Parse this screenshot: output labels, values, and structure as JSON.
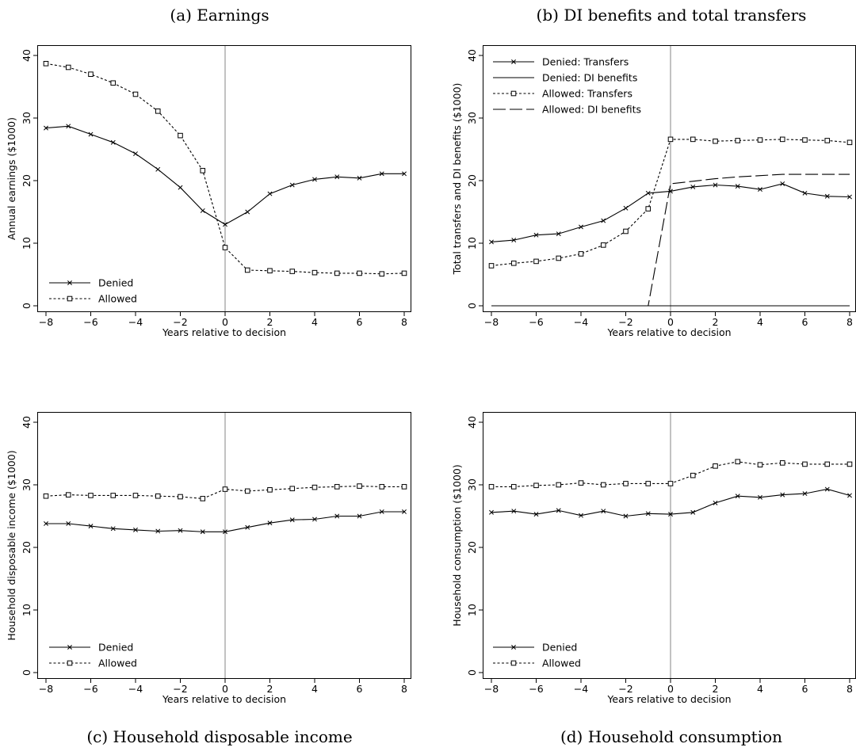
{
  "chart_data": [
    {
      "type": "line",
      "caption": "(a) Earnings",
      "xlabel": "Years relative to decision",
      "ylabel": "Annual earnings ($1000)",
      "xlim": [
        -8,
        8
      ],
      "ylim": [
        0,
        40
      ],
      "xticks": [
        "−8",
        "−6",
        "−4",
        "−2",
        "0",
        "2",
        "4",
        "6",
        "8"
      ],
      "yticks": [
        "0",
        "10",
        "20",
        "30",
        "40"
      ],
      "vline": 0,
      "legend_position": "bottom-left",
      "x": [
        -8,
        -7,
        -6,
        -5,
        -4,
        -3,
        -2,
        -1,
        0,
        1,
        2,
        3,
        4,
        5,
        6,
        7,
        8
      ],
      "series": [
        {
          "name": "Denied",
          "style": "solid",
          "marker": "x",
          "values": [
            28.4,
            28.7,
            27.4,
            26.1,
            24.3,
            21.8,
            18.9,
            15.2,
            13.0,
            15.0,
            17.9,
            19.3,
            20.2,
            20.6,
            20.4,
            21.1,
            21.1
          ]
        },
        {
          "name": "Allowed",
          "style": "dotted",
          "marker": "square",
          "values": [
            38.7,
            38.1,
            37.0,
            35.6,
            33.8,
            31.1,
            27.2,
            21.6,
            9.3,
            5.7,
            5.6,
            5.5,
            5.3,
            5.2,
            5.2,
            5.1,
            5.2
          ]
        }
      ]
    },
    {
      "type": "line",
      "caption": "(b) DI benefits and total transfers",
      "xlabel": "Years relative to decision",
      "ylabel": "Total transfers and DI benefits ($1000)",
      "xlim": [
        -8,
        8
      ],
      "ylim": [
        0,
        40
      ],
      "xticks": [
        "−8",
        "−6",
        "−4",
        "−2",
        "0",
        "2",
        "4",
        "6",
        "8"
      ],
      "yticks": [
        "0",
        "10",
        "20",
        "30",
        "40"
      ],
      "vline": 0,
      "legend_position": "top-left",
      "x": [
        -8,
        -7,
        -6,
        -5,
        -4,
        -3,
        -2,
        -1,
        0,
        1,
        2,
        3,
        4,
        5,
        6,
        7,
        8
      ],
      "series": [
        {
          "name": "Denied: Transfers",
          "style": "solid",
          "marker": "x",
          "values": [
            10.2,
            10.5,
            11.3,
            11.5,
            12.6,
            13.6,
            15.6,
            18.0,
            18.3,
            19.0,
            19.3,
            19.1,
            18.6,
            19.5,
            18.0,
            17.5,
            17.4
          ]
        },
        {
          "name": "Denied: DI benefits",
          "style": "solid",
          "marker": "none",
          "values": [
            0,
            0,
            0,
            0,
            0,
            0,
            0,
            0,
            0,
            0,
            0,
            0,
            0,
            0,
            0,
            0,
            0
          ]
        },
        {
          "name": "Allowed: Transfers",
          "style": "dotted",
          "marker": "square",
          "values": [
            6.4,
            6.8,
            7.1,
            7.6,
            8.3,
            9.7,
            11.9,
            15.5,
            26.6,
            26.6,
            26.3,
            26.4,
            26.5,
            26.6,
            26.5,
            26.4,
            26.1
          ]
        },
        {
          "name": "Allowed: DI benefits",
          "style": "longdash",
          "marker": "none",
          "values": [
            0,
            0,
            0,
            0,
            0,
            0,
            0,
            0,
            19.5,
            19.9,
            20.3,
            20.6,
            20.8,
            21.0,
            21.0,
            21.0,
            21.0
          ]
        }
      ]
    },
    {
      "type": "line",
      "caption": "(c) Household disposable income",
      "xlabel": "Years relative to decision",
      "ylabel": "Household disposable income ($1000)",
      "xlim": [
        -8,
        8
      ],
      "ylim": [
        0,
        40
      ],
      "xticks": [
        "−8",
        "−6",
        "−4",
        "−2",
        "0",
        "2",
        "4",
        "6",
        "8"
      ],
      "yticks": [
        "0",
        "10",
        "20",
        "30",
        "40"
      ],
      "vline": 0,
      "legend_position": "bottom-left",
      "x": [
        -8,
        -7,
        -6,
        -5,
        -4,
        -3,
        -2,
        -1,
        0,
        1,
        2,
        3,
        4,
        5,
        6,
        7,
        8
      ],
      "series": [
        {
          "name": "Denied",
          "style": "solid",
          "marker": "x",
          "values": [
            23.8,
            23.8,
            23.4,
            23.0,
            22.8,
            22.6,
            22.7,
            22.5,
            22.5,
            23.2,
            23.9,
            24.4,
            24.5,
            25.0,
            25.0,
            25.7,
            25.7
          ]
        },
        {
          "name": "Allowed",
          "style": "dotted",
          "marker": "square",
          "values": [
            28.2,
            28.4,
            28.3,
            28.3,
            28.3,
            28.2,
            28.1,
            27.8,
            29.3,
            29.0,
            29.2,
            29.4,
            29.6,
            29.7,
            29.8,
            29.7,
            29.7
          ]
        }
      ]
    },
    {
      "type": "line",
      "caption": "(d) Household consumption",
      "xlabel": "Years relative to decision",
      "ylabel": "Household consumption ($1000)",
      "xlim": [
        -8,
        8
      ],
      "ylim": [
        0,
        40
      ],
      "xticks": [
        "−8",
        "−6",
        "−4",
        "−2",
        "0",
        "2",
        "4",
        "6",
        "8"
      ],
      "yticks": [
        "0",
        "10",
        "20",
        "30",
        "40"
      ],
      "vline": 0,
      "legend_position": "bottom-left",
      "x": [
        -8,
        -7,
        -6,
        -5,
        -4,
        -3,
        -2,
        -1,
        0,
        1,
        2,
        3,
        4,
        5,
        6,
        7,
        8
      ],
      "series": [
        {
          "name": "Denied",
          "style": "solid",
          "marker": "x",
          "values": [
            25.6,
            25.8,
            25.3,
            25.9,
            25.1,
            25.8,
            25.0,
            25.4,
            25.3,
            25.6,
            27.1,
            28.2,
            28.0,
            28.4,
            28.6,
            29.3,
            28.3
          ]
        },
        {
          "name": "Allowed",
          "style": "dotted",
          "marker": "square",
          "values": [
            29.7,
            29.7,
            29.9,
            30.0,
            30.3,
            30.0,
            30.2,
            30.2,
            30.2,
            31.5,
            33.0,
            33.7,
            33.2,
            33.5,
            33.3,
            33.3,
            33.3
          ]
        }
      ]
    }
  ]
}
